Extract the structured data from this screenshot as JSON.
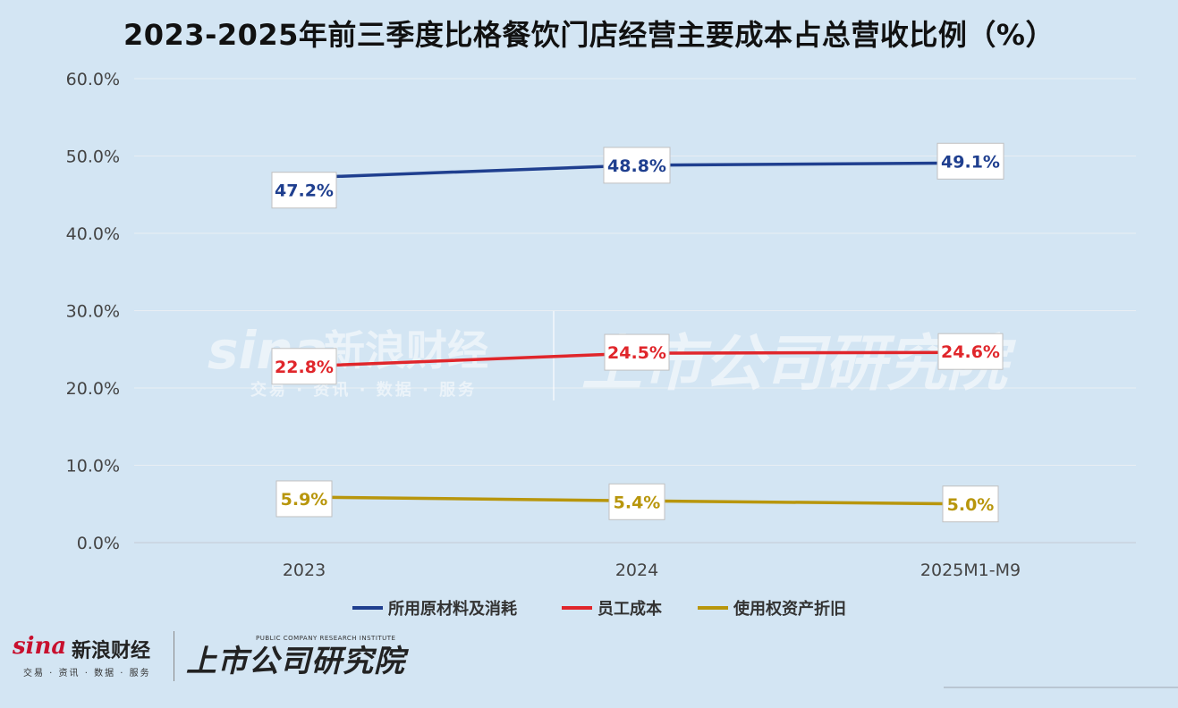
{
  "chart_data": {
    "type": "line",
    "title": "2023-2025年前三季度比格餐饮门店经营主要成本占总营收比例（%）",
    "categories": [
      "2023",
      "2024",
      "2025M1-M9"
    ],
    "y_ticks": [
      "0.0%",
      "10.0%",
      "20.0%",
      "30.0%",
      "40.0%",
      "50.0%",
      "60.0%"
    ],
    "ylim": [
      0,
      60
    ],
    "grid": true,
    "legend_position": "bottom",
    "series": [
      {
        "name": "所用原材料及消耗",
        "values": [
          47.2,
          48.8,
          49.1
        ],
        "labels": [
          "47.2%",
          "48.8%",
          "49.1%"
        ],
        "color": "#1f3f8f"
      },
      {
        "name": "员工成本",
        "values": [
          22.8,
          24.5,
          24.6
        ],
        "labels": [
          "22.8%",
          "24.5%",
          "24.6%"
        ],
        "color": "#e0262b"
      },
      {
        "name": "使用权资产折旧",
        "values": [
          5.9,
          5.4,
          5.0
        ],
        "labels": [
          "5.9%",
          "5.4%",
          "5.0%"
        ],
        "color": "#b8960c"
      }
    ]
  },
  "watermark": {
    "sina": "sina",
    "sina_cn": "新浪财经",
    "sina_sub": "交易 · 资讯 · 数据 · 服务",
    "institute": "上市公司研究院",
    "institute_en": "PUBLIC COMPANY RESEARCH INSTITUTE"
  }
}
